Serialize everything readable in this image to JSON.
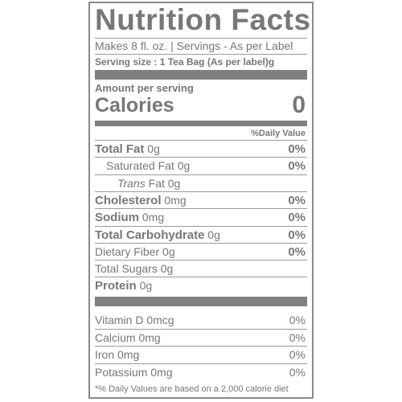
{
  "header": {
    "title": "Nutrition Facts",
    "makes": "Makes 8 fl. oz. | Servings - As per Label",
    "serving_size": "Serving size : 1 Tea Bag (As per label)g"
  },
  "calories": {
    "amount_per_serving": "Amount per serving",
    "label": "Calories",
    "value": "0",
    "daily_value_header": "%Daily Value"
  },
  "nutrients": [
    {
      "name": "Total Fat",
      "amount": "0g",
      "daily_value": "0%"
    },
    {
      "name": "Saturated Fat",
      "amount": "0g",
      "daily_value": "0%"
    },
    {
      "prefix": "Trans",
      "name": "Fat",
      "amount": "0g"
    },
    {
      "name": "Cholesterol",
      "amount": "0mg",
      "daily_value": "0%"
    },
    {
      "name": "Sodium",
      "amount": "0mg",
      "daily_value": "0%"
    },
    {
      "name": "Total Carbohydrate",
      "amount": "0g",
      "daily_value": "0%"
    },
    {
      "name": "Dietary Fiber",
      "amount": "0g",
      "daily_value": "0%"
    },
    {
      "name": "Total Sugars",
      "amount": "0g"
    },
    {
      "name": "Protein",
      "amount": "0g"
    }
  ],
  "vitamins": [
    {
      "name": "Vitamin D",
      "amount": "0mcg",
      "daily_value": "0%"
    },
    {
      "name": "Calcium",
      "amount": "0mg",
      "daily_value": "0%"
    },
    {
      "name": "Iron",
      "amount": "0mg",
      "daily_value": "0%"
    },
    {
      "name": "Potassium",
      "amount": "0mg",
      "daily_value": "0%"
    }
  ],
  "footnote": "*% Daily Values are based on a 2,000 calorie diet"
}
